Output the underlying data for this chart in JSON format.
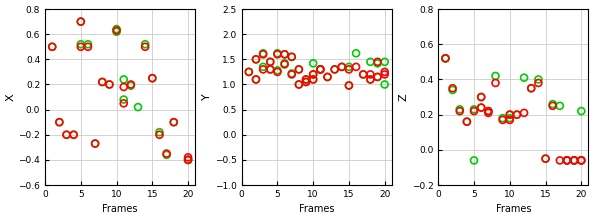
{
  "x_frames_r": [
    1,
    2,
    3,
    4,
    5,
    5,
    6,
    7,
    8,
    9,
    10,
    11,
    11,
    12,
    14,
    15,
    16,
    17,
    18,
    20,
    20
  ],
  "x_red": [
    0.5,
    -0.1,
    -0.2,
    -0.2,
    0.5,
    0.7,
    0.5,
    -0.27,
    0.22,
    0.2,
    0.63,
    0.18,
    0.05,
    0.2,
    0.5,
    0.25,
    -0.2,
    -0.35,
    -0.1,
    -0.38,
    -0.4
  ],
  "x_frames_g": [
    1,
    2,
    3,
    4,
    5,
    5,
    6,
    7,
    8,
    9,
    10,
    10,
    11,
    11,
    12,
    13,
    14,
    15,
    16,
    17,
    18,
    20,
    20
  ],
  "x_green": [
    0.5,
    -0.1,
    -0.2,
    -0.2,
    0.52,
    0.7,
    0.52,
    -0.27,
    0.22,
    0.2,
    0.62,
    0.64,
    0.24,
    0.08,
    0.19,
    0.02,
    0.52,
    0.25,
    -0.18,
    -0.36,
    -0.1,
    -0.4,
    -0.4
  ],
  "y_frames_r": [
    1,
    2,
    2,
    3,
    3,
    4,
    4,
    5,
    5,
    6,
    6,
    7,
    7,
    8,
    8,
    9,
    9,
    10,
    10,
    11,
    11,
    12,
    13,
    14,
    15,
    15,
    16,
    17,
    18,
    18,
    19,
    19,
    20,
    20
  ],
  "y_red": [
    1.25,
    1.1,
    1.5,
    1.3,
    1.6,
    1.45,
    1.3,
    1.25,
    1.6,
    1.4,
    1.6,
    1.2,
    1.55,
    1.3,
    1.0,
    1.1,
    1.05,
    1.2,
    1.1,
    1.3,
    1.3,
    1.15,
    1.3,
    1.35,
    0.98,
    1.3,
    1.35,
    1.2,
    1.1,
    1.2,
    1.15,
    1.45,
    1.2,
    1.25
  ],
  "y_frames_g": [
    1,
    2,
    2,
    3,
    3,
    4,
    4,
    5,
    5,
    6,
    6,
    7,
    7,
    8,
    8,
    9,
    9,
    10,
    10,
    10,
    11,
    11,
    12,
    13,
    14,
    15,
    15,
    16,
    17,
    18,
    18,
    19,
    19,
    20,
    20
  ],
  "y_green": [
    1.25,
    1.1,
    1.5,
    1.35,
    1.62,
    1.45,
    1.3,
    1.28,
    1.62,
    1.42,
    1.6,
    1.22,
    1.55,
    1.3,
    1.0,
    1.1,
    1.05,
    1.2,
    1.42,
    1.1,
    1.3,
    1.3,
    1.15,
    1.3,
    1.35,
    0.98,
    1.35,
    1.62,
    1.2,
    1.1,
    1.45,
    1.15,
    1.42,
    1.0,
    1.45
  ],
  "z_frames_r": [
    1,
    2,
    3,
    4,
    5,
    6,
    6,
    7,
    7,
    8,
    9,
    10,
    10,
    11,
    12,
    13,
    14,
    15,
    16,
    17,
    18,
    18,
    19,
    19,
    20,
    20
  ],
  "z_red": [
    0.52,
    0.35,
    0.22,
    0.16,
    0.22,
    0.3,
    0.24,
    0.21,
    0.22,
    0.38,
    0.17,
    0.17,
    0.2,
    0.2,
    0.21,
    0.35,
    0.38,
    -0.05,
    0.25,
    -0.06,
    -0.06,
    -0.06,
    -0.06,
    -0.06,
    -0.06,
    -0.06
  ],
  "z_frames_g": [
    1,
    1,
    2,
    3,
    4,
    5,
    5,
    6,
    6,
    7,
    7,
    8,
    9,
    10,
    10,
    11,
    12,
    13,
    14,
    15,
    16,
    17,
    18,
    18,
    19,
    19,
    20,
    20
  ],
  "z_green": [
    0.52,
    0.52,
    0.34,
    0.23,
    0.16,
    0.23,
    -0.06,
    0.3,
    0.24,
    0.22,
    0.22,
    0.42,
    0.18,
    0.18,
    0.2,
    0.2,
    0.41,
    0.35,
    0.4,
    -0.05,
    0.26,
    0.25,
    -0.06,
    -0.06,
    -0.06,
    -0.06,
    0.22,
    -0.06
  ],
  "background": "#ffffff",
  "axes_bg": "#ffffff",
  "grid_color": "#cccccc",
  "spine_color": "#000000",
  "tick_color": "#000000",
  "red_color": "#ff0000",
  "green_color": "#00cc00",
  "marker_size": 5,
  "linewidth": 1.2
}
